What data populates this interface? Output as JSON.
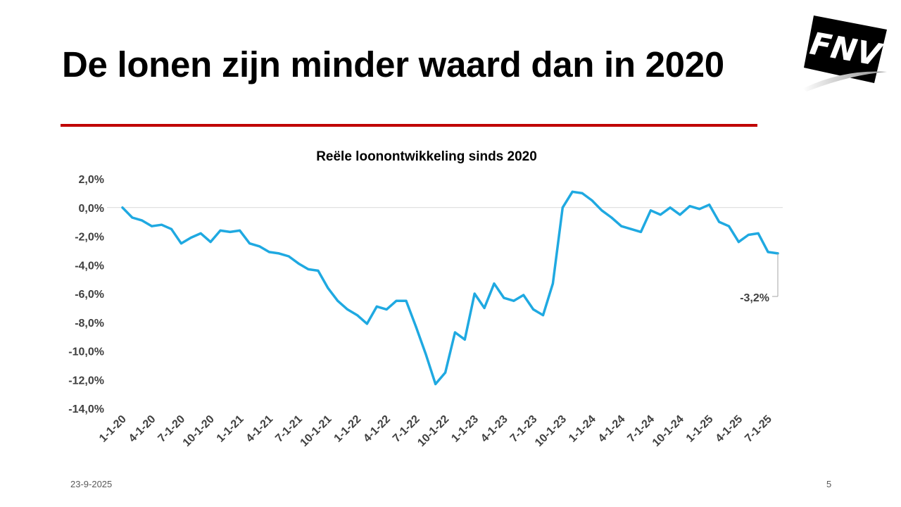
{
  "slide": {
    "title": "De lonen zijn minder waard dan in 2020",
    "footer_date": "23-9-2025",
    "page_number": "5",
    "logo_text": "FNV",
    "accent_color": "#c00000"
  },
  "chart_data": {
    "type": "line",
    "title": "Reële loonontwikkeling sinds 2020",
    "xlabel": "",
    "ylabel": "",
    "line_color": "#1fa9e1",
    "ylim": [
      -14,
      2
    ],
    "y_ticks": [
      2,
      0,
      -2,
      -4,
      -6,
      -8,
      -10,
      -12,
      -14
    ],
    "y_tick_labels": [
      "2,0%",
      "0,0%",
      "-2,0%",
      "-4,0%",
      "-6,0%",
      "-8,0%",
      "-10,0%",
      "-12,0%",
      "-14,0%"
    ],
    "x_tick_labels": [
      "1-1-20",
      "4-1-20",
      "7-1-20",
      "10-1-20",
      "1-1-21",
      "4-1-21",
      "7-1-21",
      "10-1-21",
      "1-1-22",
      "4-1-22",
      "7-1-22",
      "10-1-22",
      "1-1-23",
      "4-1-23",
      "7-1-23",
      "10-1-23",
      "1-1-24",
      "4-1-24",
      "7-1-24",
      "10-1-24",
      "1-1-25",
      "4-1-25",
      "7-1-25"
    ],
    "annotation": "-3,2%",
    "series": [
      {
        "x": [
          "2020-01",
          "2020-02",
          "2020-03",
          "2020-04",
          "2020-05",
          "2020-06",
          "2020-07",
          "2020-08",
          "2020-09",
          "2020-10",
          "2020-11",
          "2020-12",
          "2021-01",
          "2021-02",
          "2021-03",
          "2021-04",
          "2021-05",
          "2021-06",
          "2021-07",
          "2021-08",
          "2021-09",
          "2021-10",
          "2021-11",
          "2021-12",
          "2022-01",
          "2022-02",
          "2022-03",
          "2022-04",
          "2022-05",
          "2022-06",
          "2022-07",
          "2022-08",
          "2022-09",
          "2022-10",
          "2022-11",
          "2022-12",
          "2023-01",
          "2023-02",
          "2023-03",
          "2023-04",
          "2023-05",
          "2023-06",
          "2023-07",
          "2023-08",
          "2023-09",
          "2023-10",
          "2023-11",
          "2023-12",
          "2024-01",
          "2024-02",
          "2024-03",
          "2024-04",
          "2024-05",
          "2024-06",
          "2024-07",
          "2024-08",
          "2024-09",
          "2024-10",
          "2024-11",
          "2024-12",
          "2025-01",
          "2025-02",
          "2025-03",
          "2025-04",
          "2025-05",
          "2025-06",
          "2025-07",
          "2025-08"
        ],
        "values": [
          0.0,
          -0.7,
          -0.9,
          -1.3,
          -1.2,
          -1.5,
          -2.5,
          -2.1,
          -1.8,
          -2.4,
          -1.6,
          -1.7,
          -1.6,
          -2.5,
          -2.7,
          -3.1,
          -3.2,
          -3.4,
          -3.9,
          -4.3,
          -4.4,
          -5.6,
          -6.5,
          -7.1,
          -7.5,
          -8.1,
          -6.9,
          -7.1,
          -6.5,
          -6.5,
          -8.3,
          -10.2,
          -12.3,
          -11.5,
          -8.7,
          -9.2,
          -6.0,
          -7.0,
          -5.3,
          -6.3,
          -6.5,
          -6.1,
          -7.1,
          -7.5,
          -5.3,
          0.0,
          1.1,
          1.0,
          0.5,
          -0.2,
          -0.7,
          -1.3,
          -1.5,
          -1.7,
          -0.2,
          -0.5,
          0.0,
          -0.5,
          0.1,
          -0.1,
          0.2,
          -1.0,
          -1.3,
          -2.4,
          -1.9,
          -1.8,
          -3.1,
          -3.2
        ]
      }
    ]
  }
}
